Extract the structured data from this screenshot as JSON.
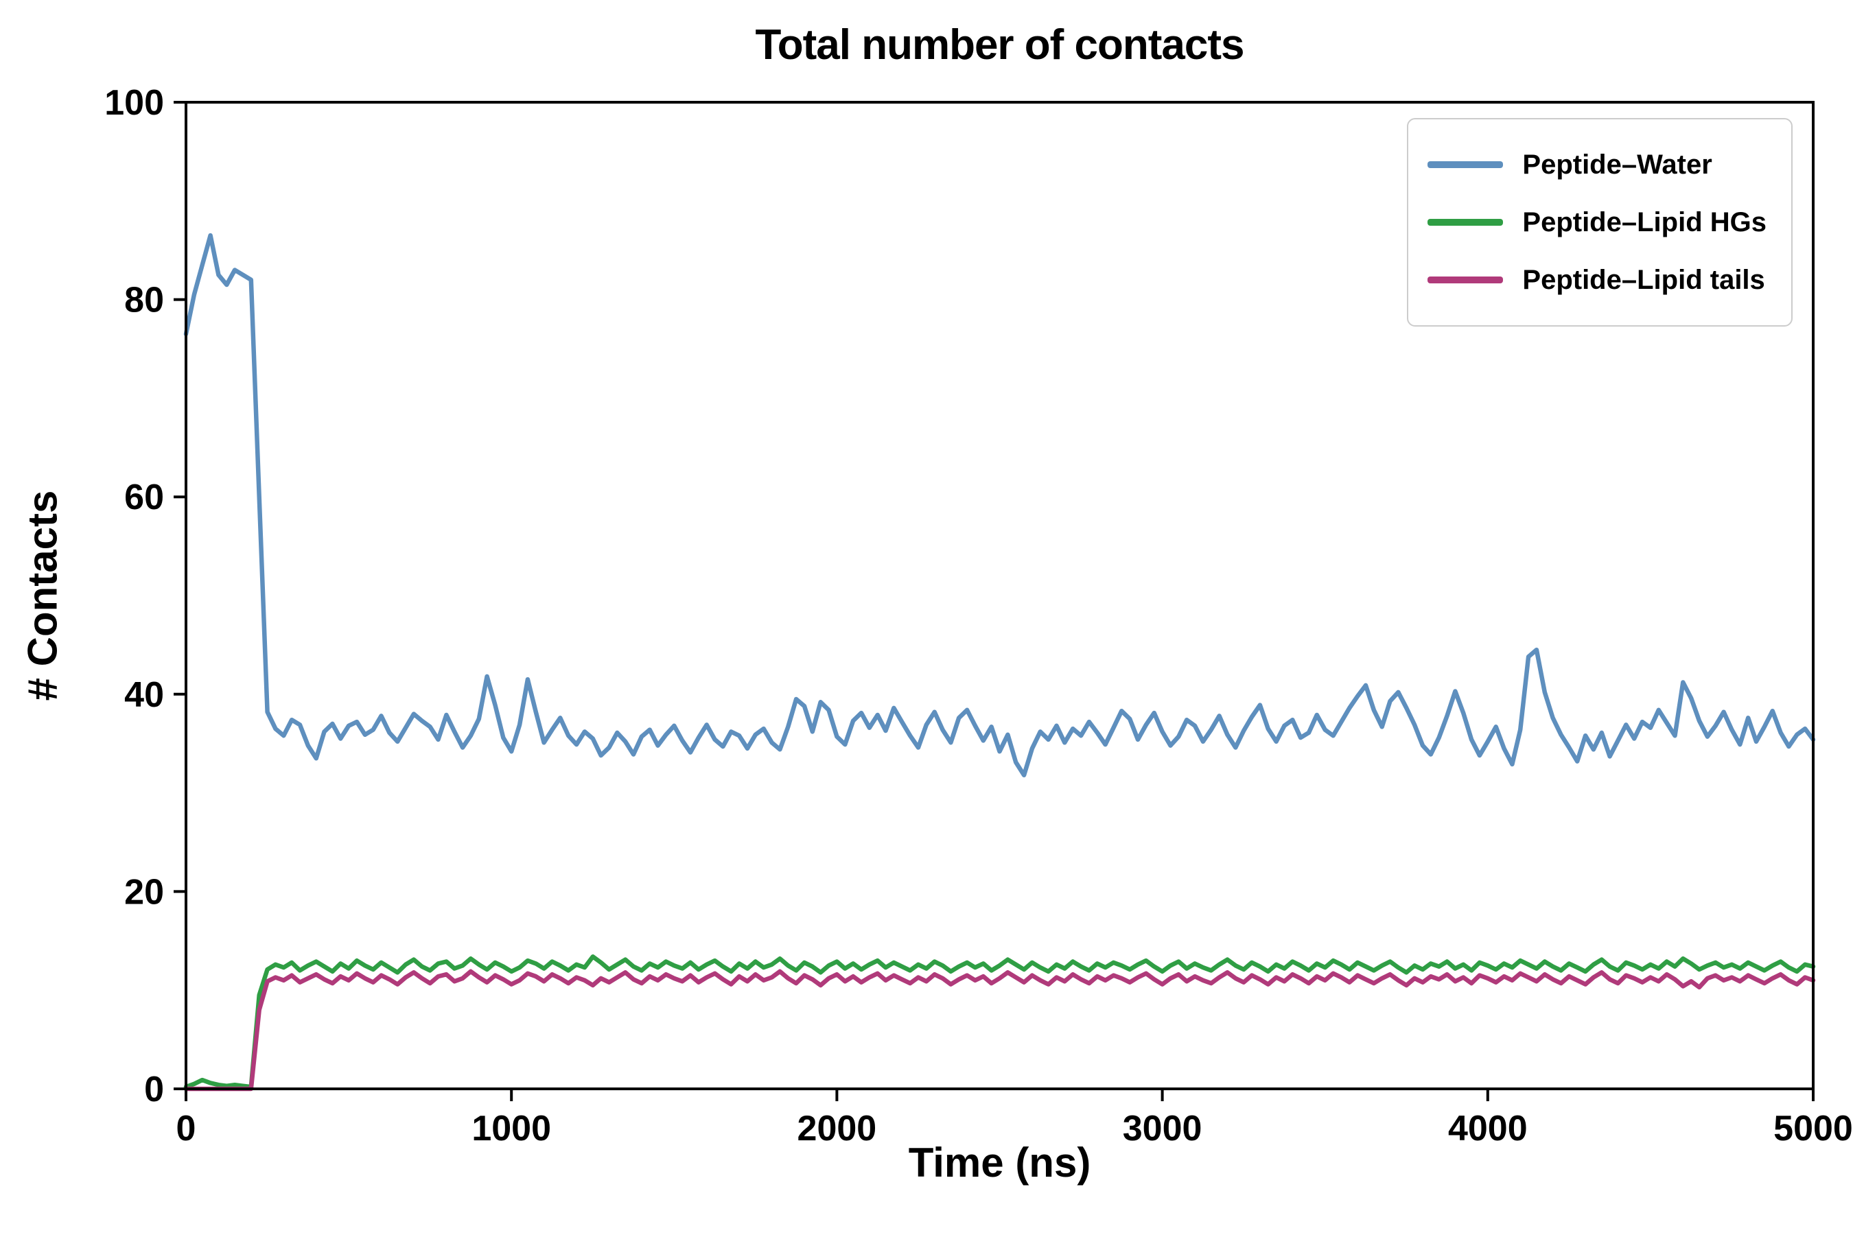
{
  "chart_data": {
    "type": "line",
    "title": "Total number of contacts",
    "xlabel": "Time (ns)",
    "ylabel": "# Contacts",
    "xlim": [
      0,
      5000
    ],
    "ylim": [
      0,
      100
    ],
    "x_ticks": [
      0,
      1000,
      2000,
      3000,
      4000,
      5000
    ],
    "y_ticks": [
      0,
      20,
      40,
      60,
      80,
      100
    ],
    "grid": false,
    "legend_position": "upper right",
    "x_start": 0,
    "x_step": 25,
    "series": [
      {
        "name": "Peptide–Water",
        "color": "#5e8fbe",
        "values": [
          76.5,
          80.5,
          83.5,
          86.5,
          82.5,
          81.5,
          83.0,
          82.5,
          82.0,
          60.0,
          38.2,
          36.5,
          35.8,
          37.4,
          36.9,
          34.8,
          33.5,
          36.2,
          37.0,
          35.5,
          36.8,
          37.2,
          35.9,
          36.4,
          37.8,
          36.1,
          35.2,
          36.6,
          38.0,
          37.3,
          36.7,
          35.4,
          37.9,
          36.2,
          34.6,
          35.8,
          37.5,
          41.8,
          38.9,
          35.6,
          34.2,
          36.9,
          41.5,
          38.2,
          35.1,
          36.4,
          37.6,
          35.8,
          34.9,
          36.2,
          35.5,
          33.8,
          34.6,
          36.1,
          35.2,
          33.9,
          35.7,
          36.4,
          34.8,
          35.9,
          36.8,
          35.3,
          34.1,
          35.6,
          36.9,
          35.4,
          34.7,
          36.2,
          35.8,
          34.5,
          35.9,
          36.5,
          35.1,
          34.4,
          36.7,
          39.5,
          38.8,
          36.2,
          39.2,
          38.4,
          35.7,
          34.9,
          37.3,
          38.1,
          36.6,
          37.9,
          36.3,
          38.6,
          37.2,
          35.8,
          34.6,
          36.9,
          38.2,
          36.4,
          35.1,
          37.6,
          38.4,
          36.8,
          35.3,
          36.7,
          34.2,
          35.9,
          33.1,
          31.8,
          34.5,
          36.2,
          35.4,
          36.8,
          35.1,
          36.5,
          35.8,
          37.2,
          36.1,
          34.9,
          36.6,
          38.3,
          37.5,
          35.4,
          36.9,
          38.1,
          36.2,
          34.8,
          35.7,
          37.4,
          36.8,
          35.2,
          36.4,
          37.8,
          35.9,
          34.6,
          36.3,
          37.7,
          38.9,
          36.5,
          35.2,
          36.8,
          37.4,
          35.6,
          36.1,
          37.9,
          36.4,
          35.8,
          37.2,
          38.6,
          39.8,
          40.9,
          38.4,
          36.7,
          39.3,
          40.2,
          38.6,
          36.9,
          34.8,
          33.9,
          35.6,
          37.8,
          40.3,
          38.1,
          35.4,
          33.8,
          35.2,
          36.7,
          34.5,
          32.9,
          36.4,
          43.8,
          44.5,
          40.2,
          37.6,
          35.9,
          34.6,
          33.2,
          35.8,
          34.4,
          36.1,
          33.7,
          35.3,
          36.9,
          35.5,
          37.2,
          36.6,
          38.4,
          37.1,
          35.8,
          41.2,
          39.6,
          37.3,
          35.7,
          36.8,
          38.2,
          36.4,
          34.9,
          37.6,
          35.2,
          36.7,
          38.3,
          36.1,
          34.7,
          35.9,
          36.5,
          35.4
        ]
      },
      {
        "name": "Peptide–Lipid HGs",
        "color": "#2f9e44",
        "values": [
          0.2,
          0.5,
          0.9,
          0.6,
          0.4,
          0.3,
          0.4,
          0.3,
          0.2,
          9.5,
          12.1,
          12.6,
          12.3,
          12.8,
          12.0,
          12.5,
          12.9,
          12.4,
          11.9,
          12.7,
          12.2,
          13.0,
          12.5,
          12.1,
          12.8,
          12.3,
          11.8,
          12.6,
          13.1,
          12.4,
          12.0,
          12.7,
          12.9,
          12.2,
          12.5,
          13.2,
          12.6,
          12.1,
          12.8,
          12.4,
          11.9,
          12.3,
          13.0,
          12.7,
          12.2,
          12.9,
          12.5,
          12.0,
          12.6,
          12.3,
          13.4,
          12.8,
          12.1,
          12.6,
          13.1,
          12.4,
          12.0,
          12.7,
          12.3,
          12.9,
          12.5,
          12.2,
          12.8,
          12.1,
          12.6,
          13.0,
          12.4,
          11.9,
          12.7,
          12.2,
          12.9,
          12.3,
          12.6,
          13.2,
          12.5,
          12.0,
          12.8,
          12.4,
          11.8,
          12.5,
          12.9,
          12.2,
          12.7,
          12.1,
          12.6,
          13.0,
          12.3,
          12.8,
          12.4,
          12.0,
          12.6,
          12.2,
          12.9,
          12.5,
          11.9,
          12.4,
          12.8,
          12.3,
          12.7,
          12.0,
          12.5,
          13.1,
          12.6,
          12.1,
          12.8,
          12.3,
          11.9,
          12.6,
          12.2,
          12.9,
          12.4,
          12.0,
          12.7,
          12.3,
          12.8,
          12.5,
          12.1,
          12.6,
          13.0,
          12.4,
          11.9,
          12.5,
          12.9,
          12.2,
          12.7,
          12.3,
          12.0,
          12.6,
          13.1,
          12.5,
          12.1,
          12.8,
          12.4,
          11.9,
          12.6,
          12.2,
          12.9,
          12.5,
          12.0,
          12.7,
          12.3,
          13.0,
          12.6,
          12.1,
          12.8,
          12.4,
          12.0,
          12.5,
          12.9,
          12.3,
          11.8,
          12.5,
          12.1,
          12.7,
          12.4,
          12.9,
          12.2,
          12.6,
          12.0,
          12.8,
          12.5,
          12.1,
          12.7,
          12.3,
          13.0,
          12.6,
          12.2,
          12.9,
          12.4,
          12.0,
          12.7,
          12.3,
          11.9,
          12.6,
          13.1,
          12.4,
          12.0,
          12.8,
          12.5,
          12.1,
          12.6,
          12.2,
          12.9,
          12.4,
          13.2,
          12.7,
          12.1,
          12.5,
          12.8,
          12.3,
          12.6,
          12.2,
          12.8,
          12.4,
          12.0,
          12.5,
          12.9,
          12.3,
          11.9,
          12.6,
          12.4
        ]
      },
      {
        "name": "Peptide–Lipid tails",
        "color": "#b03a7a",
        "values": [
          0.0,
          0.0,
          0.0,
          0.0,
          0.0,
          0.0,
          0.0,
          0.0,
          0.0,
          8.0,
          10.9,
          11.3,
          11.0,
          11.5,
          10.8,
          11.2,
          11.6,
          11.1,
          10.7,
          11.4,
          11.0,
          11.7,
          11.2,
          10.8,
          11.5,
          11.1,
          10.6,
          11.3,
          11.8,
          11.2,
          10.7,
          11.4,
          11.6,
          10.9,
          11.2,
          11.9,
          11.3,
          10.8,
          11.5,
          11.1,
          10.6,
          11.0,
          11.7,
          11.4,
          10.9,
          11.6,
          11.2,
          10.7,
          11.3,
          11.0,
          10.5,
          11.2,
          10.8,
          11.3,
          11.8,
          11.1,
          10.7,
          11.4,
          11.0,
          11.6,
          11.2,
          10.9,
          11.5,
          10.8,
          11.3,
          11.7,
          11.1,
          10.6,
          11.4,
          10.9,
          11.6,
          11.0,
          11.3,
          11.9,
          11.2,
          10.7,
          11.5,
          11.1,
          10.5,
          11.2,
          11.6,
          10.9,
          11.4,
          10.8,
          11.3,
          11.7,
          11.0,
          11.5,
          11.1,
          10.7,
          11.3,
          10.9,
          11.6,
          11.2,
          10.6,
          11.1,
          11.5,
          11.0,
          11.4,
          10.7,
          11.2,
          11.8,
          11.3,
          10.8,
          11.5,
          11.0,
          10.6,
          11.3,
          10.9,
          11.6,
          11.1,
          10.7,
          11.4,
          11.0,
          11.5,
          11.2,
          10.8,
          11.3,
          11.7,
          11.1,
          10.6,
          11.2,
          11.6,
          10.9,
          11.4,
          11.0,
          10.7,
          11.3,
          11.8,
          11.2,
          10.8,
          11.5,
          11.1,
          10.6,
          11.3,
          10.9,
          11.6,
          11.2,
          10.7,
          11.4,
          11.0,
          11.7,
          11.3,
          10.8,
          11.5,
          11.1,
          10.7,
          11.2,
          11.6,
          11.0,
          10.5,
          11.2,
          10.8,
          11.4,
          11.1,
          11.6,
          10.9,
          11.3,
          10.7,
          11.5,
          11.2,
          10.8,
          11.4,
          11.0,
          11.7,
          11.3,
          10.9,
          11.6,
          11.1,
          10.7,
          11.4,
          11.0,
          10.6,
          11.3,
          11.8,
          11.1,
          10.7,
          11.5,
          11.2,
          10.8,
          11.3,
          10.9,
          11.6,
          11.1,
          10.4,
          10.9,
          10.3,
          11.2,
          11.5,
          11.0,
          11.3,
          10.9,
          11.5,
          11.1,
          10.7,
          11.2,
          11.6,
          11.0,
          10.6,
          11.3,
          11.0
        ]
      }
    ]
  }
}
